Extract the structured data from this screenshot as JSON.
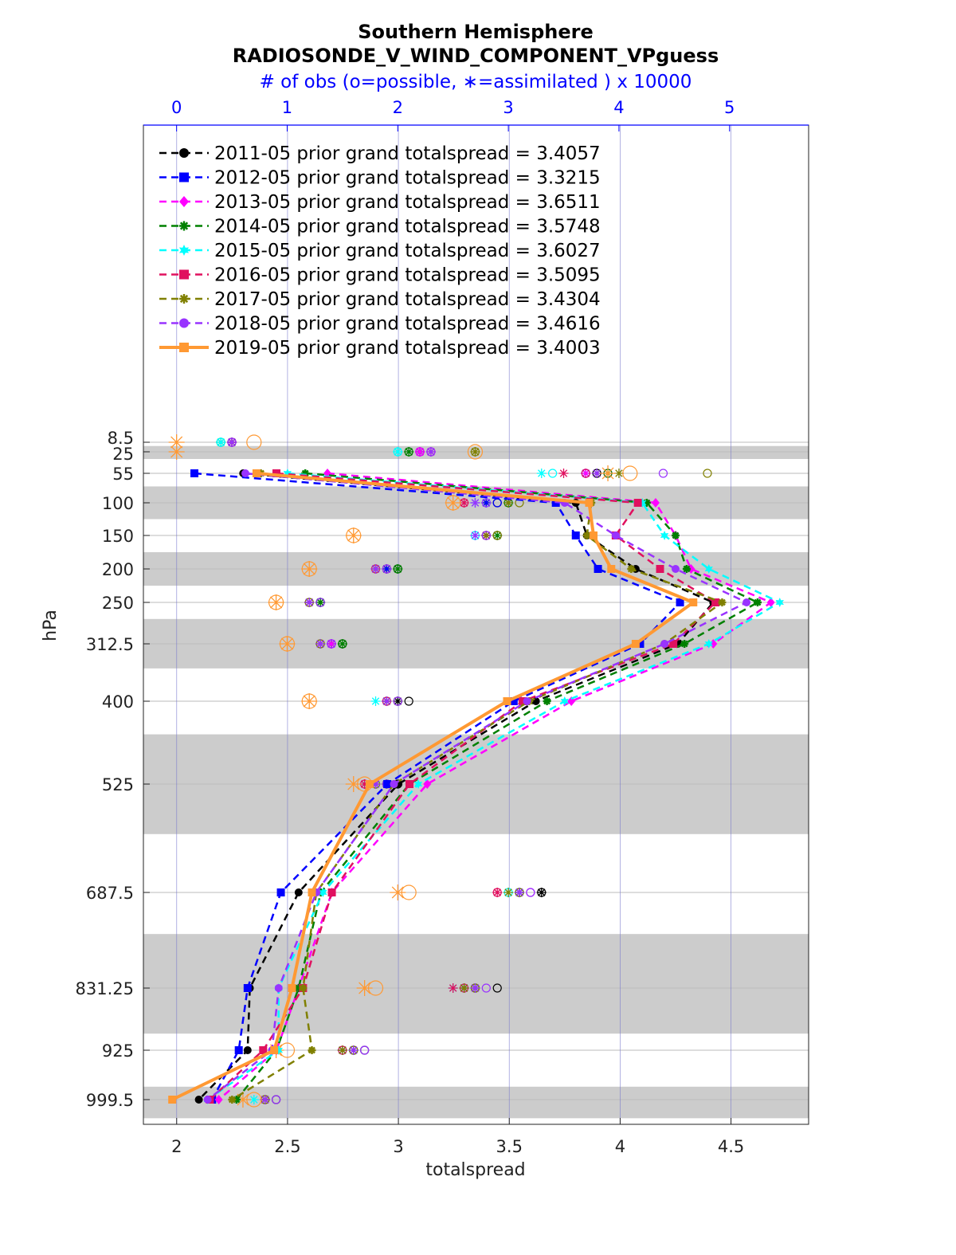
{
  "chart_data": {
    "type": "line",
    "title": "Southern Hemisphere",
    "subtitle": "RADIOSONDE_V_WIND_COMPONENT_VPguess",
    "top_axis_label": "# of obs (o=possible, ∗=assimilated ) x 10000",
    "xlabel": "totalspread",
    "ylabel": "hPa",
    "xlim": [
      1.85,
      4.85
    ],
    "top_xlim": [
      -1.5,
      5.8
    ],
    "xticks": [
      "2",
      "2.5",
      "3",
      "3.5",
      "4",
      "4.5"
    ],
    "top_xticks": [
      "0",
      "1",
      "2",
      "3",
      "4",
      "5"
    ],
    "y_axis": "reversed",
    "levels": [
      8.5,
      25,
      55,
      100,
      150,
      200,
      250,
      312.5,
      400,
      525,
      687.5,
      831.25,
      925,
      999.5
    ],
    "level_labels": [
      "8.5",
      "25",
      "55",
      "100",
      "150",
      "200",
      "250",
      "312.5",
      "400",
      "525",
      "687.5",
      "831.25",
      "925",
      "999.5"
    ],
    "shaded_bands": [
      [
        15,
        35
      ],
      [
        75,
        125
      ],
      [
        175,
        225
      ],
      [
        275,
        350
      ],
      [
        450,
        600
      ],
      [
        750,
        900
      ],
      [
        980,
        1030
      ]
    ],
    "grid": true,
    "legend_position": "top-left",
    "series": [
      {
        "name": "2011-05 prior grand totalspread = 3.4057",
        "color": "#000000",
        "marker": "circle",
        "dashed": true,
        "values": [
          null,
          null,
          2.3,
          3.8,
          3.85,
          4.07,
          4.42,
          4.26,
          3.62,
          3.0,
          2.55,
          2.33,
          2.32,
          2.1
        ],
        "possible": [
          0.5,
          2.2,
          3.8,
          2.9,
          2.9,
          2.0,
          1.3,
          1.5,
          2.1,
          2.0,
          3.3,
          2.9,
          1.7,
          0.9
        ],
        "assimilated": [
          0.5,
          2.2,
          3.8,
          2.8,
          2.8,
          1.9,
          1.3,
          1.4,
          2.0,
          1.9,
          3.3,
          2.7,
          1.6,
          0.8
        ]
      },
      {
        "name": "2012-05 prior grand totalspread = 3.3215",
        "color": "#0000ff",
        "marker": "square",
        "dashed": true,
        "values": [
          null,
          null,
          2.08,
          3.71,
          3.8,
          3.9,
          4.27,
          4.09,
          3.52,
          2.95,
          2.47,
          2.32,
          2.28,
          2.16
        ],
        "possible": [
          0.5,
          2.2,
          3.7,
          2.9,
          2.8,
          1.9,
          1.3,
          1.4,
          2.0,
          1.9,
          3.1,
          2.7,
          1.6,
          0.8
        ],
        "assimilated": [
          0.5,
          2.2,
          3.7,
          2.8,
          2.8,
          1.9,
          1.2,
          1.4,
          1.9,
          1.8,
          3.1,
          2.6,
          1.5,
          0.8
        ]
      },
      {
        "name": "2013-05 prior grand totalspread = 3.6511",
        "color": "#ff00ff",
        "marker": "diamond",
        "dashed": true,
        "values": [
          null,
          null,
          2.68,
          4.16,
          4.25,
          4.32,
          4.68,
          4.42,
          3.78,
          3.13,
          2.7,
          2.55,
          2.45,
          2.19
        ],
        "possible": [
          0.5,
          2.2,
          3.9,
          2.8,
          2.9,
          1.9,
          1.3,
          1.4,
          2.0,
          1.9,
          3.2,
          2.7,
          1.6,
          0.8
        ],
        "assimilated": [
          0.5,
          2.2,
          3.7,
          2.7,
          2.8,
          1.8,
          1.2,
          1.4,
          1.9,
          1.8,
          3.1,
          2.6,
          1.5,
          0.8
        ]
      },
      {
        "name": "2014-05 prior grand totalspread = 3.5748",
        "color": "#008000",
        "marker": "star",
        "dashed": true,
        "values": [
          null,
          null,
          2.58,
          4.12,
          4.25,
          4.3,
          4.62,
          4.29,
          3.67,
          3.05,
          2.65,
          2.55,
          2.45,
          2.27
        ],
        "possible": [
          0.4,
          2.1,
          3.9,
          3.0,
          2.9,
          2.0,
          1.3,
          1.5,
          2.0,
          1.9,
          3.1,
          2.7,
          1.6,
          0.8
        ],
        "assimilated": [
          0.4,
          2.1,
          3.9,
          3.0,
          2.9,
          2.0,
          1.3,
          1.5,
          1.9,
          1.9,
          3.1,
          2.6,
          1.5,
          0.8
        ]
      },
      {
        "name": "2015-05 prior grand totalspread = 3.6027",
        "color": "#00ffff",
        "marker": "hexagram",
        "dashed": true,
        "values": [
          null,
          null,
          2.5,
          4.1,
          4.2,
          4.4,
          4.72,
          4.4,
          3.75,
          3.09,
          2.66,
          2.46,
          2.46,
          2.14
        ],
        "possible": [
          0.4,
          2.0,
          3.4,
          2.8,
          2.7,
          1.8,
          1.2,
          1.3,
          1.9,
          1.8,
          3.0,
          2.6,
          1.5,
          0.8
        ],
        "assimilated": [
          0.4,
          2.0,
          3.3,
          2.7,
          2.7,
          1.8,
          1.2,
          1.3,
          1.8,
          1.7,
          3.0,
          2.5,
          1.5,
          0.7
        ]
      },
      {
        "name": "2016-05 prior grand totalspread = 3.5095",
        "color": "#e0115f",
        "marker": "square",
        "dashed": true,
        "values": [
          null,
          null,
          2.45,
          4.08,
          3.98,
          4.18,
          4.43,
          4.24,
          3.56,
          3.05,
          2.7,
          2.57,
          2.39,
          2.15
        ],
        "possible": [
          0.5,
          2.3,
          3.7,
          2.6,
          2.8,
          1.8,
          1.2,
          1.3,
          1.9,
          1.7,
          2.9,
          2.6,
          1.5,
          0.8
        ],
        "assimilated": [
          0.5,
          2.3,
          3.5,
          2.6,
          2.8,
          1.8,
          1.2,
          1.3,
          1.9,
          1.7,
          2.9,
          2.5,
          1.5,
          0.8
        ]
      },
      {
        "name": "2017-05 prior grand totalspread = 3.4304",
        "color": "#808000",
        "marker": "star",
        "dashed": true,
        "values": [
          null,
          null,
          2.38,
          3.87,
          3.85,
          4.05,
          4.46,
          4.2,
          3.59,
          2.98,
          2.63,
          2.57,
          2.61,
          2.25
        ],
        "possible": [
          0.5,
          2.7,
          4.8,
          3.1,
          2.9,
          1.9,
          1.2,
          1.3,
          2.0,
          1.8,
          3.1,
          2.7,
          1.6,
          0.8
        ],
        "assimilated": [
          0.5,
          2.7,
          4.0,
          3.0,
          2.8,
          1.8,
          1.2,
          1.3,
          1.9,
          1.8,
          3.0,
          2.6,
          1.5,
          0.8
        ]
      },
      {
        "name": "2018-05 prior grand totalspread = 3.4616",
        "color": "#9933ff",
        "marker": "circle",
        "dashed": true,
        "values": [
          null,
          null,
          2.31,
          3.75,
          3.98,
          4.25,
          4.57,
          4.2,
          3.58,
          2.98,
          2.63,
          2.46,
          2.43,
          2.14
        ],
        "possible": [
          0.5,
          2.3,
          4.4,
          2.8,
          2.8,
          1.9,
          1.3,
          1.4,
          2.0,
          1.9,
          3.2,
          2.8,
          1.7,
          0.9
        ],
        "assimilated": [
          0.5,
          2.3,
          3.8,
          2.7,
          2.7,
          1.8,
          1.2,
          1.3,
          1.9,
          1.8,
          3.1,
          2.7,
          1.6,
          0.8
        ]
      },
      {
        "name": "2019-05 prior grand totalspread = 3.4003",
        "color": "#ff9933",
        "marker": "square",
        "dashed": false,
        "values": [
          null,
          null,
          2.36,
          3.86,
          3.88,
          3.96,
          4.33,
          4.07,
          3.49,
          2.87,
          2.61,
          2.52,
          2.44,
          1.98
        ],
        "possible": [
          0.7,
          2.7,
          4.1,
          2.5,
          1.6,
          1.2,
          0.9,
          1.0,
          1.2,
          1.7,
          2.1,
          1.8,
          1.0,
          0.7
        ],
        "assimilated": [
          0.0,
          0.0,
          3.9,
          2.5,
          1.6,
          1.2,
          0.9,
          1.0,
          1.2,
          1.6,
          2.0,
          1.7,
          0.9,
          0.6
        ]
      }
    ]
  }
}
